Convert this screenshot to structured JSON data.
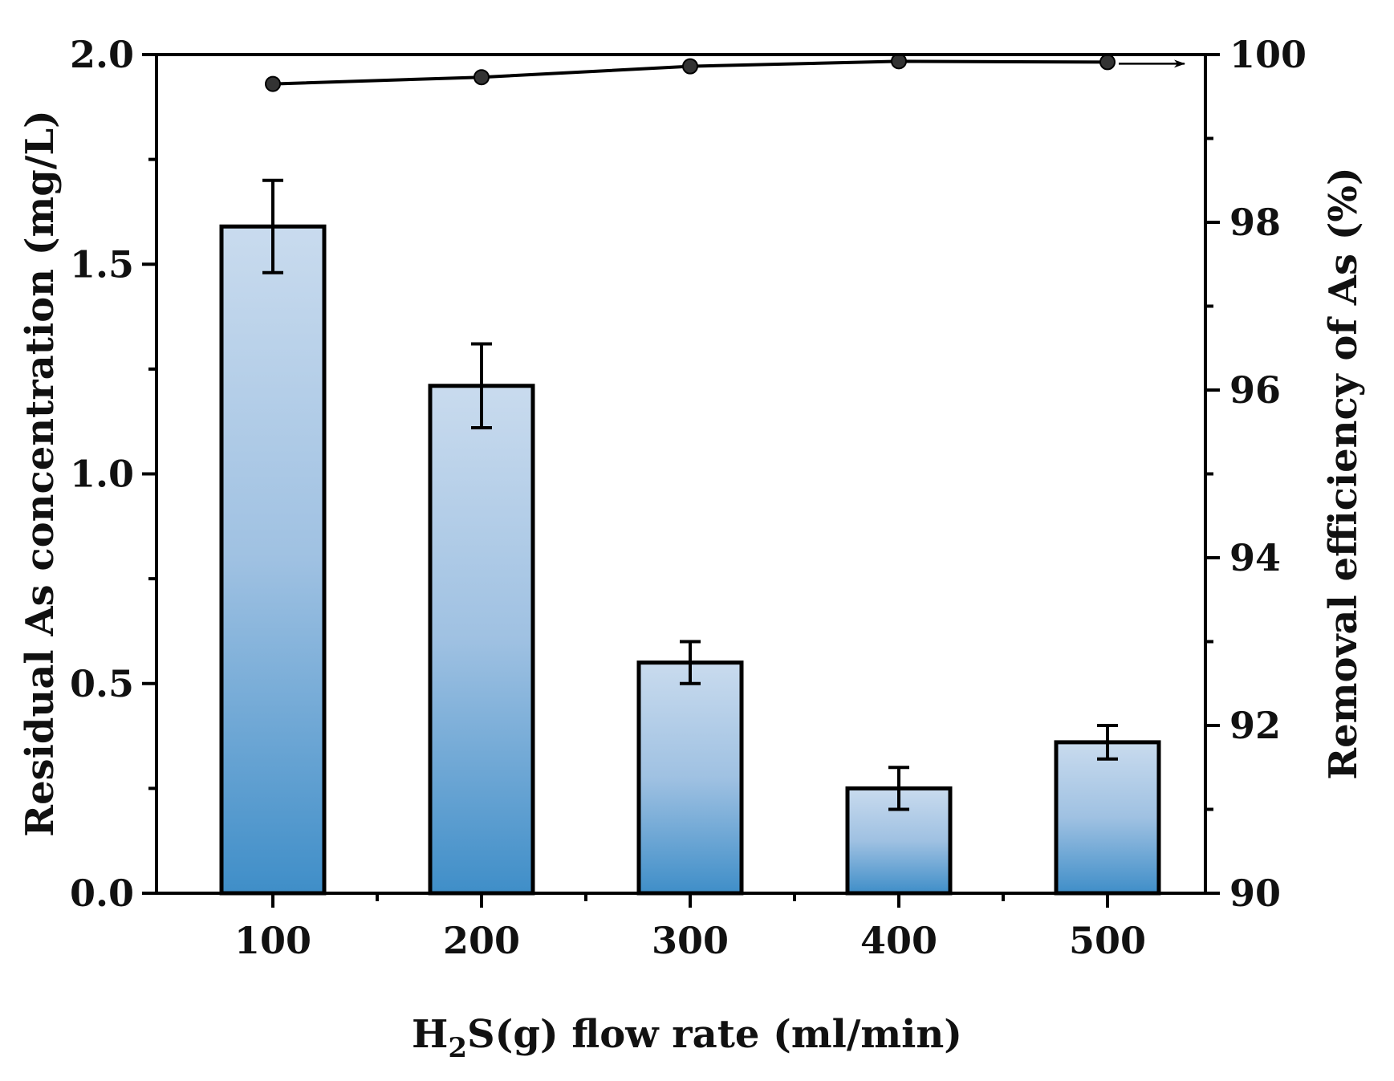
{
  "chart_data": {
    "type": "bar",
    "categories": [
      "100",
      "200",
      "300",
      "400",
      "500"
    ],
    "xlabel": {
      "pre": "H",
      "sub": "2",
      "post": "S(g) flow rate (ml/min)"
    },
    "ylabel": "Residual As concentration (mg/L)",
    "y2label": "Removal efficiency of As (%)",
    "ylim": [
      0,
      2.0
    ],
    "y2lim": [
      90,
      100
    ],
    "yticks": [
      "0.0",
      "0.5",
      "1.0",
      "1.5",
      "2.0"
    ],
    "y2ticks": [
      "90",
      "92",
      "94",
      "96",
      "98",
      "100"
    ],
    "series": [
      {
        "name": "Residual As concentration",
        "type": "bar",
        "axis": "left",
        "values": [
          1.59,
          1.21,
          0.55,
          0.25,
          0.36
        ],
        "errors": [
          0.11,
          0.1,
          0.05,
          0.05,
          0.04
        ]
      },
      {
        "name": "Removal efficiency of As",
        "type": "line",
        "axis": "right",
        "values": [
          99.65,
          99.73,
          99.86,
          99.92,
          99.91
        ]
      }
    ],
    "colors": {
      "bar_top": "#c9dbee",
      "bar_bottom": "#3f8ec8",
      "stroke": "#000000"
    }
  }
}
